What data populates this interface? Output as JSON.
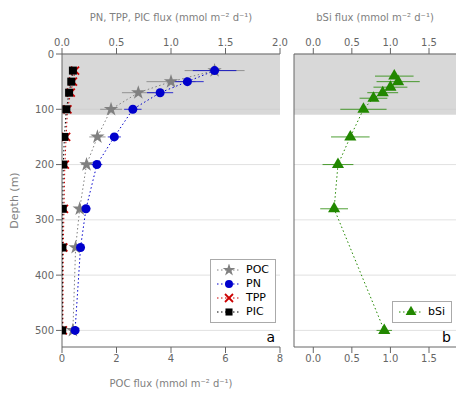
{
  "chart_data": [
    {
      "type": "line",
      "xlabel": "POC flux (mmol m⁻² d⁻¹)",
      "x2label": "PN, TPP, PIC flux (mmol m⁻² d⁻¹)",
      "ylabel": "Depth (m)",
      "xlim": [
        0,
        8
      ],
      "xticks": [
        0,
        2,
        4,
        6,
        8
      ],
      "x2lim": [
        0,
        2.0
      ],
      "x2ticks": [
        {
          "value": 0,
          "label": "0.0"
        },
        0.5,
        {
          "value": 1,
          "label": "1.0"
        },
        1.5,
        {
          "value": 2,
          "label": "2.0"
        }
      ],
      "ylim": [
        530,
        0
      ],
      "yticks": [
        0,
        100,
        200,
        300,
        400,
        500
      ],
      "grid": "y",
      "legend": "lower right",
      "annotation": "a",
      "shaded_depth": [
        0,
        110
      ],
      "shade_color": "#d8d8d8",
      "depth": [
        30,
        50,
        70,
        100,
        150,
        200,
        280,
        350,
        500
      ],
      "series": [
        {
          "name": "POC",
          "color": "#808080",
          "marker": "star",
          "line_style": "dotted",
          "values": [
            5.6,
            4.0,
            2.8,
            1.8,
            1.3,
            0.9,
            0.65,
            0.5,
            0.4
          ],
          "xerr": [
            1.1,
            0.9,
            0.6,
            0.4,
            0.3,
            0.2,
            0.15,
            0.12,
            0.1
          ]
        },
        {
          "name": "PN",
          "color": "#0000cc",
          "marker": "circle",
          "line_style": "dotted",
          "axis": "x2",
          "values": [
            1.4,
            1.15,
            0.9,
            0.65,
            0.48,
            0.32,
            0.22,
            0.17,
            0.12
          ],
          "xerr": [
            0.2,
            0.15,
            0.12,
            0.08,
            0.06,
            0.05,
            0.04,
            0.03,
            0.02
          ]
        },
        {
          "name": "TPP",
          "color": "#cc0000",
          "marker": "x",
          "line_style": "dotted",
          "axis": "x2",
          "values": [
            0.12,
            0.1,
            0.08,
            0.05,
            0.038,
            0.026,
            0.018,
            0.012,
            0.008
          ],
          "xerr": [
            0.015,
            0.012,
            0.01,
            0.008,
            0.006,
            0.004,
            0.003,
            0.002,
            0.001
          ]
        },
        {
          "name": "PIC",
          "color": "#000000",
          "marker": "square",
          "line_style": "dotted",
          "axis": "x2",
          "values": [
            0.1,
            0.085,
            0.065,
            0.04,
            0.022,
            0.012,
            0.007,
            0.004,
            0.002
          ],
          "xerr": [
            0.01,
            0.008,
            0.007,
            0.005,
            0.003,
            0.002,
            0.001,
            0.001,
            0.001
          ]
        }
      ]
    },
    {
      "type": "line",
      "x2label": "bSi flux (mmol m⁻² d⁻¹)",
      "xlim": [
        -0.25,
        1.85
      ],
      "xticks": [
        {
          "value": 0,
          "label": "0.0"
        },
        0.5,
        {
          "value": 1,
          "label": "1.0"
        },
        1.5
      ],
      "x2lim": [
        -0.25,
        1.85
      ],
      "x2ticks": [
        {
          "value": 0,
          "label": "0.0"
        },
        0.5,
        {
          "value": 1,
          "label": "1.0"
        },
        1.5
      ],
      "ylim": [
        530,
        0
      ],
      "yticks": [
        0,
        100,
        200,
        300,
        400,
        500
      ],
      "tick_labels": "x",
      "grid": "y",
      "legend": "lower right",
      "annotation": "b",
      "shaded_depth": [
        0,
        110
      ],
      "shade_color": "#d8d8d8",
      "depth": [
        40,
        50,
        60,
        70,
        80,
        100,
        150,
        200,
        280,
        500
      ],
      "series": [
        {
          "name": "bSi",
          "color": "#228800",
          "marker": "triangle",
          "line_style": "dotted",
          "values": [
            1.05,
            1.1,
            1.0,
            0.9,
            0.78,
            0.65,
            0.48,
            0.32,
            0.27,
            0.92
          ],
          "xerr": [
            0.25,
            0.28,
            0.22,
            0.2,
            0.18,
            0.3,
            0.25,
            0.2,
            0.18,
            0.1
          ]
        }
      ]
    }
  ]
}
